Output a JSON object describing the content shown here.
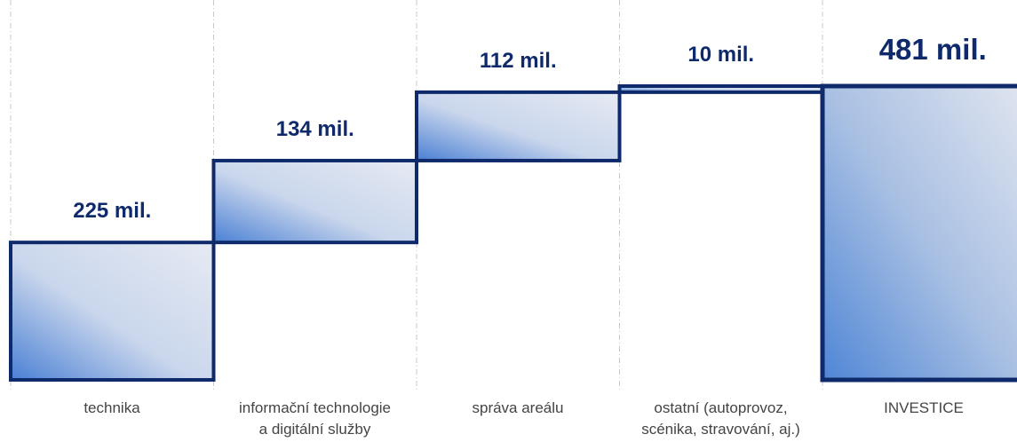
{
  "chart_data": {
    "type": "waterfall",
    "categories": [
      "technika",
      "informační technologie\na digitální služby",
      "správa areálu",
      "ostatní (autoprovoz,\nscénika, stravování, aj.)",
      "INVESTICE"
    ],
    "values": [
      225,
      134,
      112,
      10,
      481
    ],
    "value_labels": [
      "225 mil.",
      "134 mil.",
      "112 mil.",
      "10 mil.",
      "481 mil."
    ],
    "is_total": [
      false,
      false,
      false,
      false,
      true
    ],
    "color": "#0f2a6b",
    "grid": true
  }
}
